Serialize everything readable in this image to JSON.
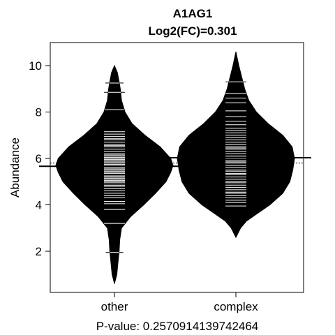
{
  "chart_data": {
    "type": "beanplot",
    "title": "A1AG1",
    "subtitle": "Log2(FC)=0.301",
    "xlabel": "P-value: 0.2570914139742464",
    "ylabel": "Abundance",
    "categories": [
      "other",
      "complex"
    ],
    "y_ticks": [
      2,
      4,
      6,
      8,
      10
    ],
    "ylim": [
      0.3,
      10.7
    ],
    "overall_mean_line": 5.8,
    "group_means": [
      5.66,
      6.03
    ],
    "groups": [
      {
        "name": "other",
        "range": [
          0.6,
          10.0
        ],
        "density": [
          [
            0.6,
            0.0
          ],
          [
            1.0,
            0.04
          ],
          [
            1.5,
            0.06
          ],
          [
            2.0,
            0.08
          ],
          [
            2.5,
            0.09
          ],
          [
            3.0,
            0.12
          ],
          [
            3.5,
            0.28
          ],
          [
            4.0,
            0.5
          ],
          [
            4.5,
            0.7
          ],
          [
            5.0,
            0.88
          ],
          [
            5.4,
            0.96
          ],
          [
            5.7,
            1.0
          ],
          [
            6.0,
            0.96
          ],
          [
            6.5,
            0.78
          ],
          [
            7.0,
            0.52
          ],
          [
            7.5,
            0.3
          ],
          [
            8.0,
            0.18
          ],
          [
            8.5,
            0.12
          ],
          [
            9.0,
            0.1
          ],
          [
            9.3,
            0.08
          ],
          [
            9.7,
            0.05
          ],
          [
            10.0,
            0.0
          ]
        ],
        "points": [
          1.95,
          3.2,
          3.8,
          4.05,
          4.15,
          4.3,
          4.4,
          4.5,
          4.6,
          4.7,
          4.8,
          4.85,
          4.95,
          5.0,
          5.05,
          5.1,
          5.15,
          5.2,
          5.25,
          5.35,
          5.4,
          5.45,
          5.5,
          5.55,
          5.6,
          5.65,
          5.7,
          5.75,
          5.8,
          5.85,
          5.9,
          5.95,
          6.0,
          6.05,
          6.1,
          6.15,
          6.2,
          6.3,
          6.4,
          6.5,
          6.55,
          6.6,
          6.7,
          6.8,
          6.85,
          6.95,
          7.05,
          7.15,
          8.1,
          8.85,
          9.25
        ]
      },
      {
        "name": "complex",
        "range": [
          2.6,
          10.6
        ],
        "density": [
          [
            2.6,
            0.0
          ],
          [
            3.0,
            0.08
          ],
          [
            3.3,
            0.18
          ],
          [
            3.6,
            0.35
          ],
          [
            4.0,
            0.58
          ],
          [
            4.5,
            0.8
          ],
          [
            5.0,
            0.92
          ],
          [
            5.5,
            0.97
          ],
          [
            6.0,
            1.0
          ],
          [
            6.5,
            0.96
          ],
          [
            7.0,
            0.8
          ],
          [
            7.5,
            0.55
          ],
          [
            8.0,
            0.35
          ],
          [
            8.5,
            0.22
          ],
          [
            9.0,
            0.15
          ],
          [
            9.5,
            0.1
          ],
          [
            10.0,
            0.05
          ],
          [
            10.6,
            0.0
          ]
        ],
        "points": [
          3.95,
          4.1,
          4.2,
          4.3,
          4.4,
          4.5,
          4.55,
          4.65,
          4.75,
          4.85,
          4.95,
          5.0,
          5.1,
          5.2,
          5.3,
          5.35,
          5.45,
          5.5,
          5.6,
          5.7,
          5.8,
          5.85,
          5.9,
          6.0,
          6.05,
          6.1,
          6.2,
          6.3,
          6.4,
          6.45,
          6.5,
          6.6,
          6.7,
          6.8,
          6.9,
          7.0,
          7.1,
          7.2,
          7.3,
          7.45,
          7.6,
          7.8,
          8.05,
          8.4,
          8.6,
          8.8,
          9.3
        ]
      }
    ]
  }
}
